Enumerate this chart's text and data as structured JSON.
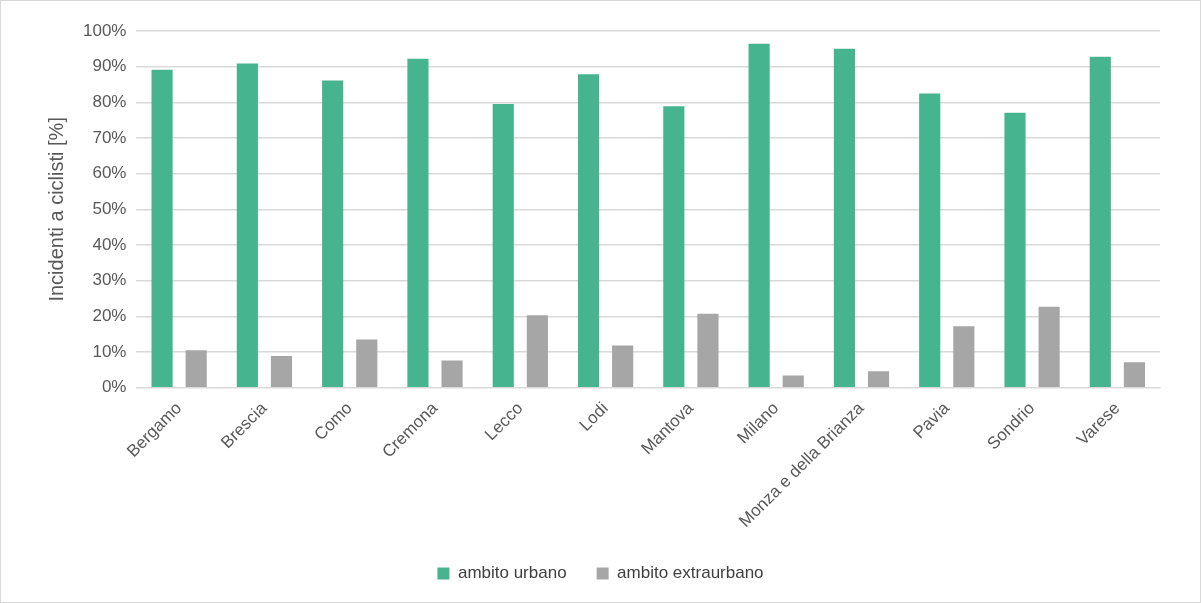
{
  "chart_data": {
    "type": "bar",
    "ylabel": "Incidenti a ciclisti [%]",
    "categories": [
      "Bergamo",
      "Brescia",
      "Como",
      "Cremona",
      "Lecco",
      "Lodi",
      "Mantova",
      "Milano",
      "Monza e della Brianza",
      "Pavia",
      "Sondrio",
      "Varese"
    ],
    "series": [
      {
        "name": "ambito urbano",
        "color": "#46b48e",
        "values": [
          89.1,
          90.9,
          86.1,
          92.2,
          79.5,
          87.9,
          78.9,
          96.4,
          95.0,
          82.5,
          77.1,
          92.8
        ]
      },
      {
        "name": "ambito extraurbano",
        "color": "#a6a6a6",
        "values": [
          10.5,
          8.9,
          13.5,
          7.6,
          20.3,
          11.8,
          20.7,
          3.4,
          4.6,
          17.2,
          22.7,
          7.1
        ]
      }
    ],
    "ylim": [
      0,
      100
    ],
    "yticks": [
      {
        "value": 0,
        "label": "0%"
      },
      {
        "value": 10,
        "label": "10%"
      },
      {
        "value": 20,
        "label": "20%"
      },
      {
        "value": 30,
        "label": "30%"
      },
      {
        "value": 40,
        "label": "40%"
      },
      {
        "value": 50,
        "label": "50%"
      },
      {
        "value": 60,
        "label": "60%"
      },
      {
        "value": 70,
        "label": "70%"
      },
      {
        "value": 80,
        "label": "80%"
      },
      {
        "value": 90,
        "label": "90%"
      },
      {
        "value": 100,
        "label": "100%"
      }
    ],
    "grid": "y",
    "legend": "bottom"
  }
}
